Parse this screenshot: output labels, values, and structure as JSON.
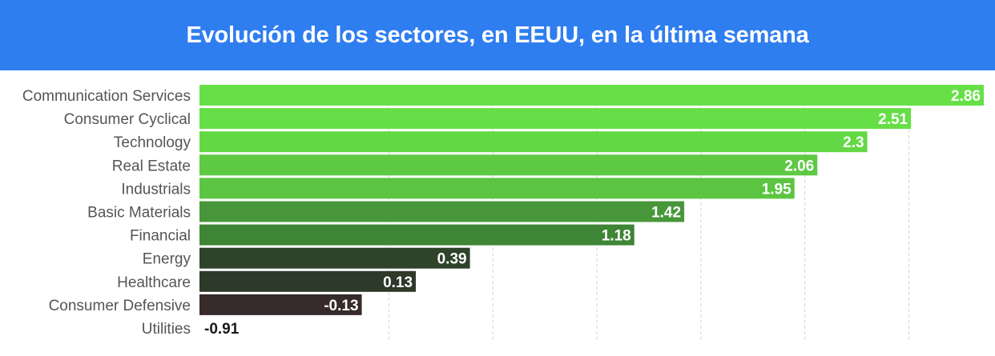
{
  "header": {
    "title": "Evolución de los sectores, en EEUU, en la última semana",
    "background": "#2f7ef0"
  },
  "chart_data": {
    "type": "bar",
    "orientation": "horizontal",
    "title": "Evolución de los sectores, en EEUU, en la última semana",
    "xlabel": "",
    "ylabel": "",
    "grid": true,
    "categories": [
      "Communication Services",
      "Consumer Cyclical",
      "Technology",
      "Real Estate",
      "Industrials",
      "Basic Materials",
      "Financial",
      "Energy",
      "Healthcare",
      "Consumer Defensive",
      "Utilities"
    ],
    "values": [
      2.86,
      2.51,
      2.3,
      2.06,
      1.95,
      1.42,
      1.18,
      0.39,
      0.13,
      -0.13,
      -0.91
    ],
    "value_labels": [
      "2.86",
      "2.51",
      "2.3",
      "2.06",
      "1.95",
      "1.42",
      "1.18",
      "0.39",
      "0.13",
      "-0.13",
      "-0.91"
    ],
    "colors": [
      "#67e048",
      "#66de47",
      "#63d845",
      "#5ec943",
      "#5bc542",
      "#47973a",
      "#3e8535",
      "#2e432a",
      "#2d3a2a",
      "#362a2a",
      "#72221f"
    ],
    "xlim": [
      -0.91,
      2.86
    ]
  }
}
